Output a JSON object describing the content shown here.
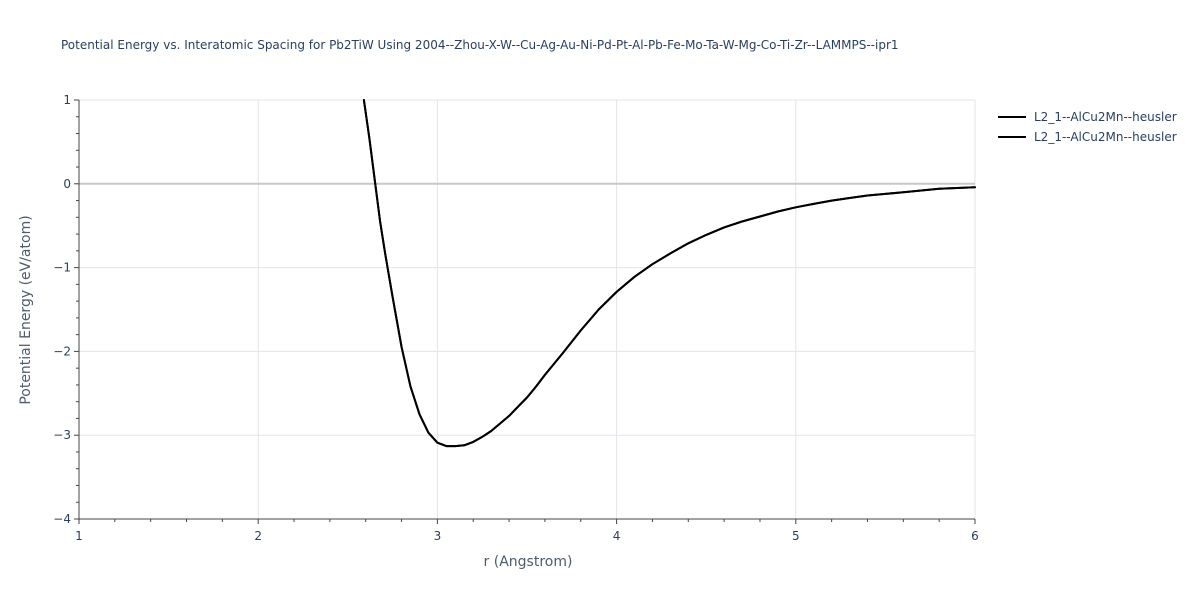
{
  "chart_data": {
    "type": "line",
    "title": "Potential Energy vs. Interatomic Spacing for Pb2TiW Using 2004--Zhou-X-W--Cu-Ag-Au-Ni-Pd-Pt-Al-Pb-Fe-Mo-Ta-W-Mg-Co-Ti-Zr--LAMMPS--ipr1",
    "xlabel": "r (Angstrom)",
    "ylabel": "Potential Energy (eV/atom)",
    "xlim": [
      1,
      6
    ],
    "ylim": [
      -4,
      1
    ],
    "x_ticks": [
      1,
      2,
      3,
      4,
      5,
      6
    ],
    "y_ticks": [
      1,
      0,
      -1,
      -2,
      -3,
      -4
    ],
    "x_tick_labels": [
      "1",
      "2",
      "3",
      "4",
      "5",
      "6"
    ],
    "y_tick_labels": [
      "1",
      "0",
      "−1",
      "−2",
      "−3",
      "−4"
    ],
    "grid": true,
    "legend_position": "top-right",
    "line_color": "#000000",
    "series": [
      {
        "name": "L2_1--AlCu2Mn--heusler",
        "x": [
          2.59,
          2.62,
          2.65,
          2.68,
          2.71,
          2.75,
          2.8,
          2.85,
          2.9,
          2.95,
          3.0,
          3.05,
          3.1,
          3.15,
          3.2,
          3.25,
          3.3,
          3.35,
          3.4,
          3.45,
          3.5,
          3.55,
          3.6,
          3.7,
          3.8,
          3.9,
          4.0,
          4.1,
          4.2,
          4.3,
          4.4,
          4.5,
          4.6,
          4.7,
          4.8,
          4.9,
          5.0,
          5.1,
          5.2,
          5.3,
          5.4,
          5.5,
          5.6,
          5.7,
          5.8,
          5.9,
          6.0
        ],
        "y": [
          1.0,
          0.55,
          0.05,
          -0.45,
          -0.85,
          -1.35,
          -1.95,
          -2.42,
          -2.75,
          -2.97,
          -3.09,
          -3.13,
          -3.13,
          -3.12,
          -3.08,
          -3.02,
          -2.95,
          -2.86,
          -2.77,
          -2.66,
          -2.55,
          -2.42,
          -2.28,
          -2.02,
          -1.75,
          -1.5,
          -1.29,
          -1.11,
          -0.96,
          -0.83,
          -0.71,
          -0.61,
          -0.52,
          -0.45,
          -0.39,
          -0.33,
          -0.28,
          -0.24,
          -0.2,
          -0.17,
          -0.14,
          -0.12,
          -0.1,
          -0.08,
          -0.06,
          -0.05,
          -0.04
        ]
      },
      {
        "name": "L2_1--AlCu2Mn--heusler",
        "x": [
          2.59,
          2.62,
          2.65,
          2.68,
          2.71,
          2.75,
          2.8,
          2.85,
          2.9,
          2.95,
          3.0,
          3.05,
          3.1,
          3.15,
          3.2,
          3.25,
          3.3,
          3.35,
          3.4,
          3.45,
          3.5,
          3.55,
          3.6,
          3.7,
          3.8,
          3.9,
          4.0,
          4.1,
          4.2,
          4.3,
          4.4,
          4.5,
          4.6,
          4.7,
          4.8,
          4.9,
          5.0,
          5.1,
          5.2,
          5.3,
          5.4,
          5.5,
          5.6,
          5.7,
          5.8,
          5.9,
          6.0
        ],
        "y": [
          1.0,
          0.55,
          0.05,
          -0.45,
          -0.85,
          -1.35,
          -1.95,
          -2.42,
          -2.75,
          -2.97,
          -3.09,
          -3.13,
          -3.13,
          -3.12,
          -3.08,
          -3.02,
          -2.95,
          -2.86,
          -2.77,
          -2.66,
          -2.55,
          -2.42,
          -2.28,
          -2.02,
          -1.75,
          -1.5,
          -1.29,
          -1.11,
          -0.96,
          -0.83,
          -0.71,
          -0.61,
          -0.52,
          -0.45,
          -0.39,
          -0.33,
          -0.28,
          -0.24,
          -0.2,
          -0.17,
          -0.14,
          -0.12,
          -0.1,
          -0.08,
          -0.06,
          -0.05,
          -0.04
        ]
      }
    ]
  }
}
